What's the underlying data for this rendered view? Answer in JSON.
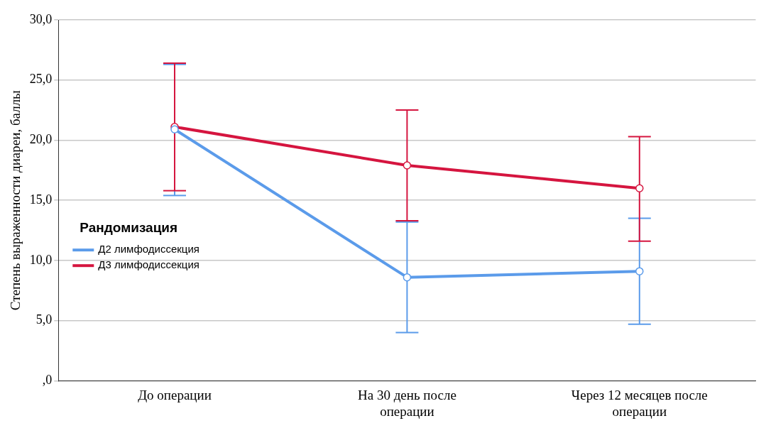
{
  "chart_data": {
    "type": "line",
    "ylabel": "Степень выраженности диареи, баллы",
    "legend_title": "Рандомизация",
    "categories": [
      "До операции",
      "На 30 день после операции",
      "Через 12 месяцев после операции"
    ],
    "series": [
      {
        "name": "Д2 лимфодиссекция",
        "color": "#5b9bea",
        "values": [
          20.9,
          8.6,
          9.1
        ],
        "errors": [
          [
            15.4,
            26.3
          ],
          [
            4.0,
            13.2
          ],
          [
            4.7,
            13.5
          ]
        ]
      },
      {
        "name": "Д3 лимфодиссекция",
        "color": "#d5153f",
        "values": [
          21.1,
          17.9,
          16.0
        ],
        "errors": [
          [
            15.8,
            26.4
          ],
          [
            13.3,
            22.5
          ],
          [
            11.6,
            20.3
          ]
        ]
      }
    ],
    "ylim": [
      0,
      30
    ],
    "yticks": [
      {
        "value": 0,
        "label": ",0"
      },
      {
        "value": 5,
        "label": "5,0"
      },
      {
        "value": 10,
        "label": "10,0"
      },
      {
        "value": 15,
        "label": "15,0"
      },
      {
        "value": 20,
        "label": "20,0"
      },
      {
        "value": 25,
        "label": "25,0"
      },
      {
        "value": 30,
        "label": "30,0"
      }
    ],
    "grid": "y",
    "legend": "left",
    "marker": "circle",
    "line_style": "solid"
  }
}
